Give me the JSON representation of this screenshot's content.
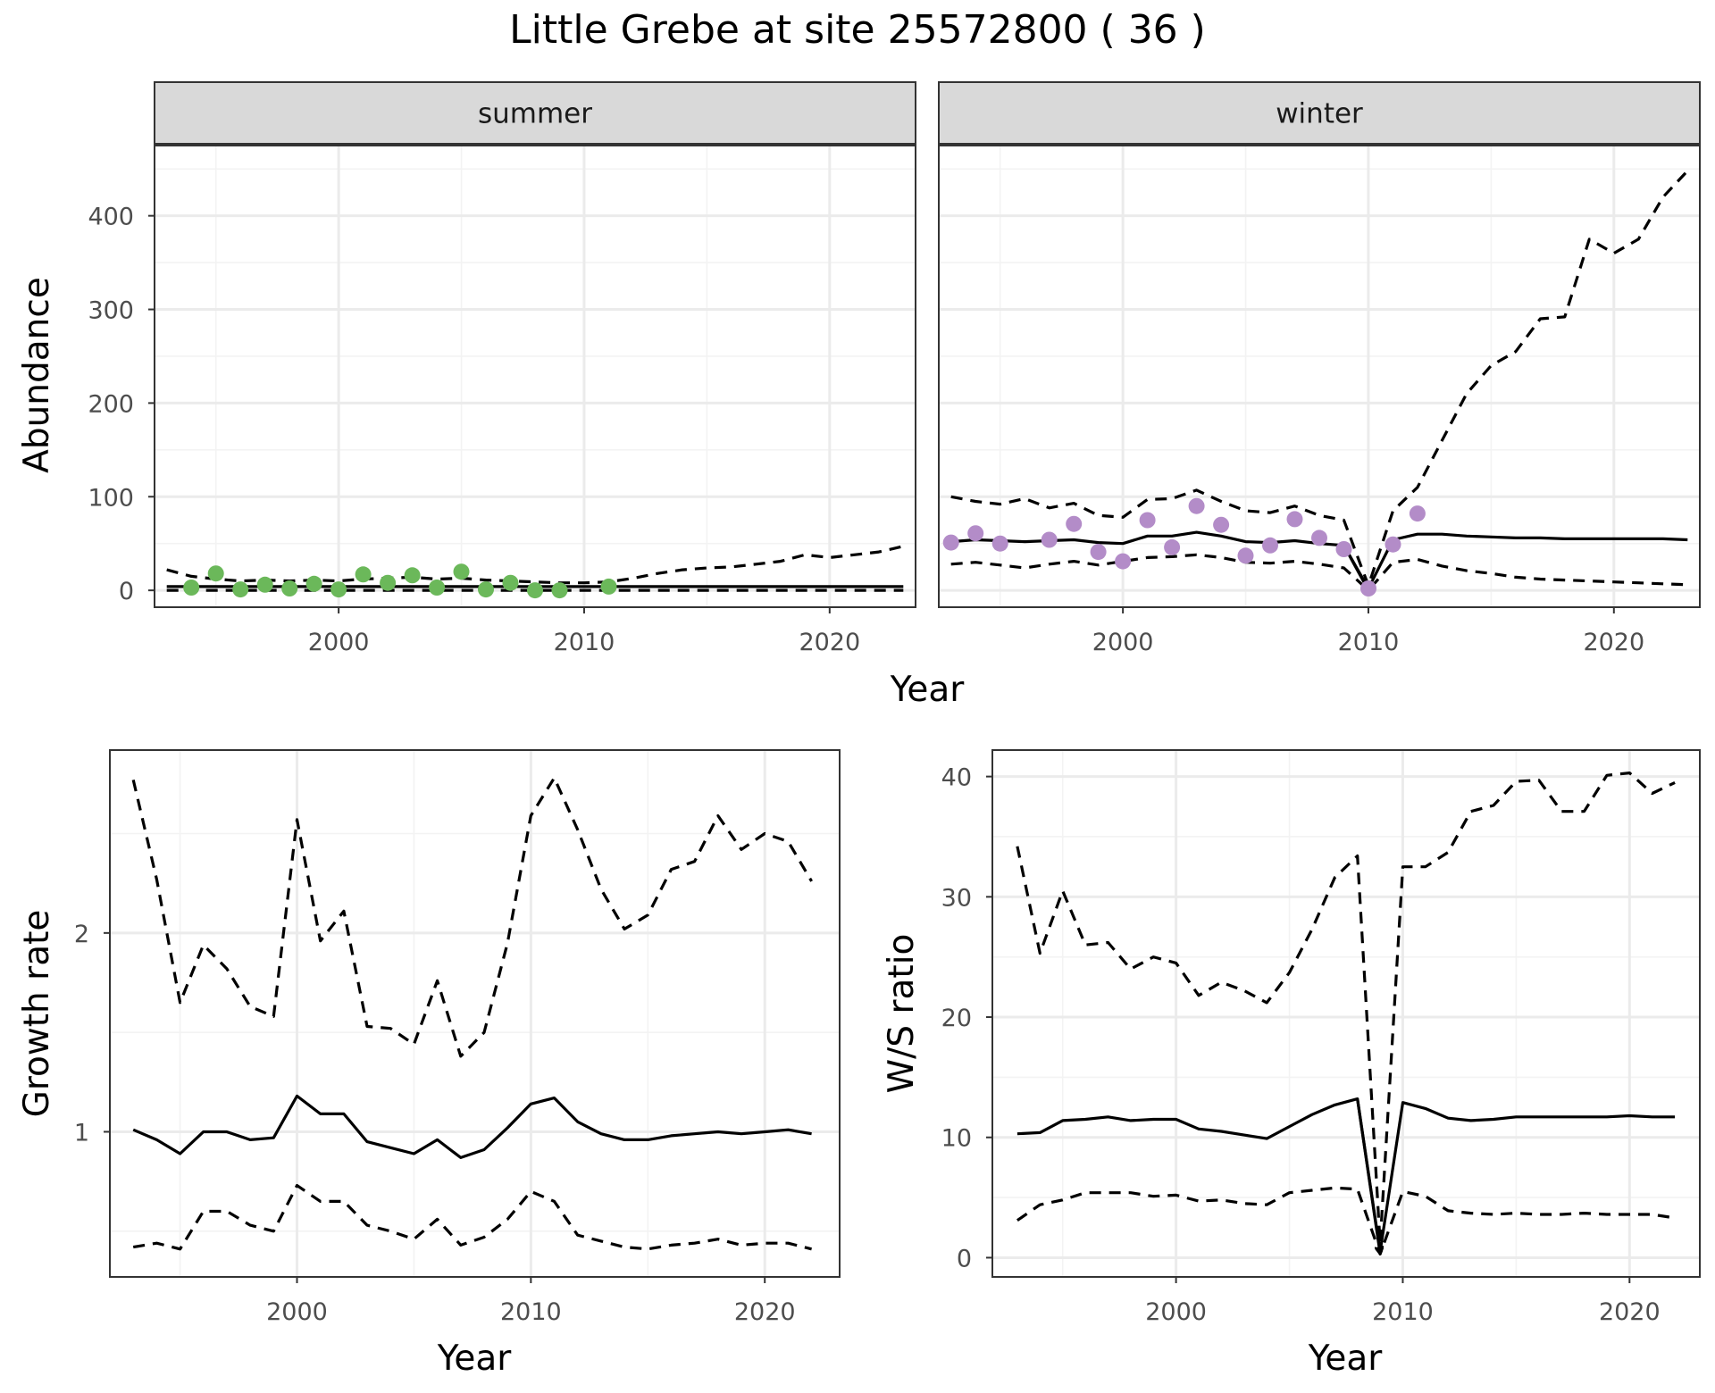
{
  "title": "Little Grebe at site 25572800 ( 36 )",
  "colors": {
    "summer_points": "#6bb85a",
    "winter_points": "#b38cc8",
    "line": "#000000",
    "grid_major": "#ebebeb",
    "grid_minor": "#f3f3f3",
    "strip_fill": "#d9d9d9",
    "panel_border": "#333333"
  },
  "chart_data": [
    {
      "type": "line",
      "panel": "summer",
      "strip_label": "summer",
      "xlabel": "Year",
      "ylabel": "Abundance",
      "xlim": [
        1992.5,
        2023.5
      ],
      "ylim": [
        -18,
        475
      ],
      "xticks": [
        2000,
        2010,
        2020
      ],
      "yticks": [
        0,
        100,
        200,
        300,
        400
      ],
      "grid": true,
      "series": [
        {
          "role": "estimate",
          "style": "solid",
          "x": [
            1993,
            1995,
            2000,
            2005,
            2010,
            2015,
            2020,
            2023
          ],
          "y": [
            4,
            4,
            4,
            4,
            4,
            4,
            4,
            4
          ]
        },
        {
          "role": "upper",
          "style": "dashed",
          "x": [
            1993,
            1994,
            1995,
            1996,
            1997,
            1998,
            1999,
            2000,
            2001,
            2002,
            2003,
            2004,
            2005,
            2006,
            2007,
            2008,
            2009,
            2010,
            2011,
            2012,
            2013,
            2014,
            2015,
            2016,
            2017,
            2018,
            2019,
            2020,
            2021,
            2022,
            2023
          ],
          "y": [
            22,
            15,
            12,
            10,
            11,
            10,
            11,
            10,
            12,
            13,
            14,
            12,
            13,
            11,
            10,
            9,
            8,
            8,
            9,
            13,
            18,
            22,
            24,
            25,
            28,
            31,
            38,
            35,
            38,
            41,
            47
          ]
        },
        {
          "role": "lower",
          "style": "dashed",
          "x": [
            1993,
            1995,
            2000,
            2005,
            2010,
            2015,
            2020,
            2023
          ],
          "y": [
            0,
            0,
            0,
            0,
            0,
            0,
            0,
            0
          ]
        }
      ],
      "points": {
        "x": [
          1994,
          1995,
          1996,
          1997,
          1998,
          1999,
          2000,
          2001,
          2002,
          2003,
          2004,
          2005,
          2006,
          2007,
          2008,
          2009,
          2011
        ],
        "y": [
          3,
          18,
          1,
          6,
          2,
          7,
          1,
          17,
          8,
          16,
          3,
          20,
          1,
          8,
          0,
          0,
          4
        ]
      }
    },
    {
      "type": "line",
      "panel": "winter",
      "strip_label": "winter",
      "xlabel": "Year",
      "xlim": [
        1992.5,
        2023.5
      ],
      "ylim": [
        -18,
        475
      ],
      "xticks": [
        2000,
        2010,
        2020
      ],
      "yticks": [
        0,
        100,
        200,
        300,
        400
      ],
      "grid": true,
      "series": [
        {
          "role": "estimate",
          "style": "solid",
          "x": [
            1993,
            1994,
            1995,
            1996,
            1997,
            1998,
            1999,
            2000,
            2001,
            2002,
            2003,
            2004,
            2005,
            2006,
            2007,
            2008,
            2009,
            2010,
            2011,
            2012,
            2013,
            2014,
            2015,
            2016,
            2017,
            2018,
            2019,
            2020,
            2021,
            2022,
            2023
          ],
          "y": [
            52,
            54,
            53,
            52,
            53,
            54,
            51,
            50,
            58,
            58,
            62,
            58,
            52,
            51,
            53,
            50,
            48,
            2,
            54,
            60,
            60,
            58,
            57,
            56,
            56,
            55,
            55,
            55,
            55,
            55,
            54
          ]
        },
        {
          "role": "upper",
          "style": "dashed",
          "x": [
            1993,
            1994,
            1995,
            1996,
            1997,
            1998,
            1999,
            2000,
            2001,
            2002,
            2003,
            2004,
            2005,
            2006,
            2007,
            2008,
            2009,
            2010,
            2011,
            2012,
            2013,
            2014,
            2015,
            2016,
            2017,
            2018,
            2019,
            2020,
            2021,
            2022,
            2023
          ],
          "y": [
            100,
            95,
            92,
            98,
            88,
            93,
            80,
            78,
            97,
            98,
            107,
            95,
            85,
            83,
            90,
            80,
            75,
            5,
            85,
            110,
            160,
            210,
            240,
            255,
            290,
            292,
            375,
            360,
            375,
            420,
            448
          ]
        },
        {
          "role": "lower",
          "style": "dashed",
          "x": [
            1993,
            1994,
            1995,
            1996,
            1997,
            1998,
            1999,
            2000,
            2001,
            2002,
            2003,
            2004,
            2005,
            2006,
            2007,
            2008,
            2009,
            2010,
            2011,
            2012,
            2013,
            2014,
            2015,
            2016,
            2017,
            2018,
            2019,
            2020,
            2021,
            2022,
            2023
          ],
          "y": [
            28,
            30,
            27,
            24,
            28,
            31,
            27,
            31,
            35,
            36,
            38,
            35,
            30,
            29,
            31,
            28,
            24,
            0,
            30,
            33,
            26,
            21,
            18,
            14,
            12,
            11,
            10,
            9,
            8,
            7,
            6
          ]
        }
      ],
      "points": {
        "x": [
          1993,
          1994,
          1995,
          1997,
          1998,
          1999,
          2000,
          2001,
          2002,
          2003,
          2004,
          2005,
          2006,
          2007,
          2008,
          2009,
          2010,
          2011,
          2012
        ],
        "y": [
          51,
          61,
          50,
          54,
          71,
          41,
          31,
          75,
          46,
          90,
          70,
          37,
          48,
          76,
          56,
          44,
          2,
          49,
          82
        ]
      }
    },
    {
      "type": "line",
      "panel": "growth",
      "xlabel": "Year",
      "ylabel": "Growth rate",
      "xlim": [
        1992.0,
        2023.2
      ],
      "ylim": [
        0.27,
        2.92
      ],
      "xticks": [
        2000,
        2010,
        2020
      ],
      "yticks": [
        1,
        2
      ],
      "yticklabels": [
        "1",
        "2"
      ],
      "grid": true,
      "series": [
        {
          "role": "estimate",
          "style": "solid",
          "x": [
            1993,
            1994,
            1995,
            1996,
            1997,
            1998,
            1999,
            2000,
            2001,
            2002,
            2003,
            2004,
            2005,
            2006,
            2007,
            2008,
            2009,
            2010,
            2011,
            2012,
            2013,
            2014,
            2015,
            2016,
            2017,
            2018,
            2019,
            2020,
            2021,
            2022
          ],
          "y": [
            1.01,
            0.96,
            0.89,
            1.0,
            1.0,
            0.96,
            0.97,
            1.18,
            1.09,
            1.09,
            0.95,
            0.92,
            0.89,
            0.96,
            0.87,
            0.91,
            1.02,
            1.14,
            1.17,
            1.05,
            0.99,
            0.96,
            0.96,
            0.98,
            0.99,
            1.0,
            0.99,
            1.0,
            1.01,
            0.99
          ]
        },
        {
          "role": "upper",
          "style": "dashed",
          "x": [
            1993,
            1994,
            1995,
            1996,
            1997,
            1998,
            1999,
            2000,
            2001,
            2002,
            2003,
            2004,
            2005,
            2006,
            2007,
            2008,
            2009,
            2010,
            2011,
            2012,
            2013,
            2014,
            2015,
            2016,
            2017,
            2018,
            2019,
            2020,
            2021,
            2022
          ],
          "y": [
            2.77,
            2.27,
            1.65,
            1.94,
            1.82,
            1.63,
            1.58,
            2.57,
            1.96,
            2.11,
            1.53,
            1.52,
            1.44,
            1.76,
            1.38,
            1.5,
            1.95,
            2.59,
            2.78,
            2.52,
            2.22,
            2.02,
            2.09,
            2.32,
            2.36,
            2.59,
            2.42,
            2.5,
            2.46,
            2.26
          ]
        },
        {
          "role": "lower",
          "style": "dashed",
          "x": [
            1993,
            1994,
            1995,
            1996,
            1997,
            1998,
            1999,
            2000,
            2001,
            2002,
            2003,
            2004,
            2005,
            2006,
            2007,
            2008,
            2009,
            2010,
            2011,
            2012,
            2013,
            2014,
            2015,
            2016,
            2017,
            2018,
            2019,
            2020,
            2021,
            2022
          ],
          "y": [
            0.42,
            0.44,
            0.41,
            0.6,
            0.6,
            0.53,
            0.5,
            0.73,
            0.65,
            0.65,
            0.53,
            0.5,
            0.46,
            0.56,
            0.43,
            0.47,
            0.56,
            0.7,
            0.65,
            0.48,
            0.45,
            0.42,
            0.41,
            0.43,
            0.44,
            0.46,
            0.43,
            0.44,
            0.44,
            0.41
          ]
        }
      ]
    },
    {
      "type": "line",
      "panel": "ws_ratio",
      "xlabel": "Year",
      "ylabel": "W/S ratio",
      "xlim": [
        1991.9,
        2023.1
      ],
      "ylim": [
        -1.6,
        42.2
      ],
      "xticks": [
        2000,
        2010,
        2020
      ],
      "yticks": [
        0,
        10,
        20,
        30,
        40
      ],
      "grid": true,
      "series": [
        {
          "role": "estimate",
          "style": "solid",
          "x": [
            1993,
            1994,
            1995,
            1996,
            1997,
            1998,
            1999,
            2000,
            2001,
            2002,
            2003,
            2004,
            2005,
            2006,
            2007,
            2008,
            2009,
            2010,
            2011,
            2012,
            2013,
            2014,
            2015,
            2016,
            2017,
            2018,
            2019,
            2020,
            2021,
            2022
          ],
          "y": [
            10.3,
            10.4,
            11.4,
            11.5,
            11.7,
            11.4,
            11.5,
            11.5,
            10.7,
            10.5,
            10.2,
            9.9,
            10.9,
            11.9,
            12.7,
            13.2,
            0.5,
            12.9,
            12.4,
            11.6,
            11.4,
            11.5,
            11.7,
            11.7,
            11.7,
            11.7,
            11.7,
            11.8,
            11.7,
            11.7
          ]
        },
        {
          "role": "upper",
          "style": "dashed",
          "x": [
            1993,
            1994,
            1995,
            1996,
            1997,
            1998,
            1999,
            2000,
            2001,
            2002,
            2003,
            2004,
            2005,
            2006,
            2007,
            2008,
            2009,
            2010,
            2011,
            2012,
            2013,
            2014,
            2015,
            2016,
            2017,
            2018,
            2019,
            2020,
            2021,
            2022
          ],
          "y": [
            34.2,
            25.3,
            30.5,
            26.0,
            26.2,
            24.0,
            25.0,
            24.5,
            21.8,
            22.9,
            22.2,
            21.2,
            23.7,
            27.3,
            31.6,
            33.4,
            1.2,
            32.5,
            32.5,
            33.7,
            37.1,
            37.6,
            39.6,
            39.7,
            37.1,
            37.1,
            40.1,
            40.3,
            38.6,
            39.5
          ]
        },
        {
          "role": "lower",
          "style": "dashed",
          "x": [
            1993,
            1994,
            1995,
            1996,
            1997,
            1998,
            1999,
            2000,
            2001,
            2002,
            2003,
            2004,
            2005,
            2006,
            2007,
            2008,
            2009,
            2010,
            2011,
            2012,
            2013,
            2014,
            2015,
            2016,
            2017,
            2018,
            2019,
            2020,
            2021,
            2022
          ],
          "y": [
            3.1,
            4.4,
            4.8,
            5.4,
            5.4,
            5.4,
            5.1,
            5.2,
            4.7,
            4.8,
            4.5,
            4.4,
            5.4,
            5.6,
            5.8,
            5.7,
            0.3,
            5.5,
            5.1,
            3.9,
            3.7,
            3.6,
            3.7,
            3.6,
            3.6,
            3.7,
            3.6,
            3.6,
            3.6,
            3.3
          ]
        }
      ]
    }
  ]
}
